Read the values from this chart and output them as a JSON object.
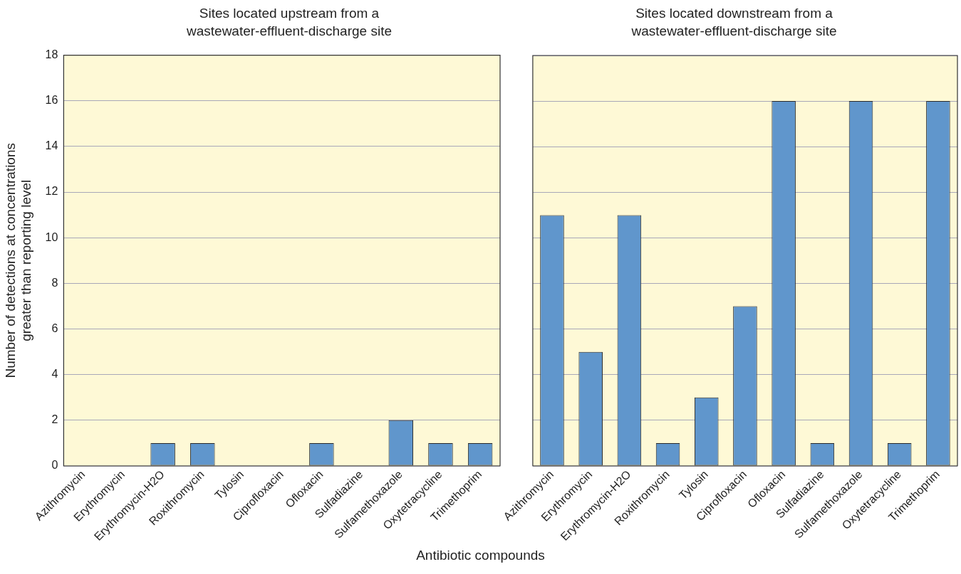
{
  "chart_data": [
    {
      "type": "bar",
      "title": "Sites located upstream from a wastewater-effluent-discharge site",
      "xlabel": "Antibiotic compounds",
      "ylabel": "Number of detections at concentrations greater than reporting level",
      "categories": [
        "Azithromycin",
        "Erythromycin",
        "Erythromycin-H2O",
        "Roxithromycin",
        "Tylosin",
        "Ciprofloxacin",
        "Ofloxacin",
        "Sulfadiazine",
        "Sulfamethoxazole",
        "Oxytetracycline",
        "Trimethoprim"
      ],
      "values": [
        0,
        0,
        1,
        1,
        0,
        0,
        1,
        0,
        2,
        1,
        1
      ],
      "color": "#6096cc",
      "ylim": [
        0,
        18
      ],
      "yticks": [
        0,
        2,
        4,
        6,
        8,
        10,
        12,
        14,
        16,
        18
      ],
      "grid": "y"
    },
    {
      "type": "bar",
      "title": "Sites located downstream from a wastewater-effluent-discharge site",
      "categories": [
        "Azithromycin",
        "Erythromycin",
        "Erythromycin-H2O",
        "Roxithromycin",
        "Tylosin",
        "Ciprofloxacin",
        "Ofloxacin",
        "Sulfadiazine",
        "Sulfamethoxazole",
        "Oxytetracycline",
        "Trimethoprim"
      ],
      "values": [
        11,
        5,
        11,
        1,
        3,
        7,
        16,
        1,
        16,
        1,
        16
      ],
      "color": "#6096cc",
      "ylim": [
        0,
        18
      ],
      "yticks": [
        0,
        2,
        4,
        6,
        8,
        10,
        12,
        14,
        16,
        18
      ],
      "grid": "y",
      "tick_labels": "x"
    }
  ]
}
